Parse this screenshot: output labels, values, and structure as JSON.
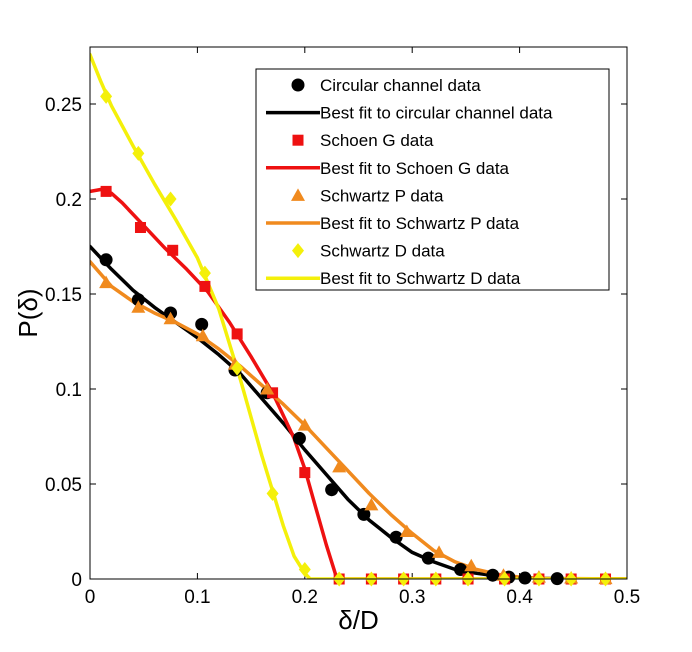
{
  "chart_data": {
    "type": "line",
    "title": "",
    "xlabel": "δ/D",
    "ylabel": "P(δ)",
    "xlim": [
      0,
      0.5
    ],
    "ylim": [
      0,
      0.28
    ],
    "xticks": [
      0,
      0.1,
      0.2,
      0.3,
      0.4,
      0.5
    ],
    "xtick_labels": [
      "0",
      "0.1",
      "0.2",
      "0.3",
      "0.4",
      "0.5"
    ],
    "yticks": [
      0,
      0.05,
      0.1,
      0.15,
      0.2,
      0.25
    ],
    "ytick_labels": [
      "0",
      "0.05",
      "0.1",
      "0.15",
      "0.2",
      "0.25"
    ],
    "legend_position": "top-right",
    "series": [
      {
        "name": "Circular channel data",
        "kind": "markers",
        "marker": "circle",
        "color": "#000000",
        "x": [
          0.015,
          0.045,
          0.075,
          0.104,
          0.135,
          0.165,
          0.195,
          0.225,
          0.255,
          0.285,
          0.315,
          0.345,
          0.375,
          0.39,
          0.405,
          0.435
        ],
        "y": [
          0.168,
          0.147,
          0.14,
          0.134,
          0.11,
          0.098,
          0.074,
          0.047,
          0.034,
          0.022,
          0.011,
          0.005,
          0.002,
          0.001,
          0.0005,
          0.0002
        ]
      },
      {
        "name": "Best fit to circular channel data",
        "kind": "line",
        "color": "#000000",
        "x": [
          0,
          0.02,
          0.04,
          0.06,
          0.08,
          0.1,
          0.12,
          0.14,
          0.16,
          0.18,
          0.2,
          0.22,
          0.24,
          0.26,
          0.28,
          0.3,
          0.32,
          0.34,
          0.36,
          0.38,
          0.4,
          0.42,
          0.44,
          0.5
        ],
        "y": [
          0.175,
          0.163,
          0.152,
          0.143,
          0.135,
          0.127,
          0.118,
          0.108,
          0.095,
          0.082,
          0.068,
          0.055,
          0.042,
          0.031,
          0.022,
          0.014,
          0.009,
          0.005,
          0.003,
          0.0015,
          0.0008,
          0.0003,
          0.0001,
          0
        ]
      },
      {
        "name": "Schoen G data",
        "kind": "markers",
        "marker": "square",
        "color": "#ee1111",
        "x": [
          0.015,
          0.047,
          0.077,
          0.107,
          0.137,
          0.17,
          0.2,
          0.232,
          0.262,
          0.292,
          0.322,
          0.352,
          0.386,
          0.418,
          0.448,
          0.48
        ],
        "y": [
          0.204,
          0.185,
          0.173,
          0.154,
          0.129,
          0.098,
          0.056,
          0,
          0,
          0,
          0,
          0,
          0,
          0,
          0,
          0
        ]
      },
      {
        "name": "Best fit to Schoen G data",
        "kind": "line",
        "color": "#ee1111",
        "x": [
          0,
          0.01,
          0.02,
          0.03,
          0.05,
          0.07,
          0.09,
          0.11,
          0.13,
          0.15,
          0.17,
          0.19,
          0.2,
          0.21,
          0.22,
          0.23,
          0.5
        ],
        "y": [
          0.204,
          0.205,
          0.203,
          0.198,
          0.186,
          0.174,
          0.163,
          0.151,
          0.135,
          0.117,
          0.098,
          0.074,
          0.058,
          0.038,
          0.018,
          0,
          0
        ]
      },
      {
        "name": "Schwartz P data",
        "kind": "markers",
        "marker": "triangle",
        "color": "#f08a1e",
        "x": [
          0.015,
          0.045,
          0.075,
          0.105,
          0.135,
          0.165,
          0.2,
          0.232,
          0.262,
          0.295,
          0.325,
          0.355,
          0.385,
          0.418,
          0.448,
          0.48
        ],
        "y": [
          0.156,
          0.143,
          0.137,
          0.128,
          0.113,
          0.1,
          0.081,
          0.059,
          0.039,
          0.025,
          0.014,
          0.007,
          0.002,
          0.001,
          0.0005,
          0.0002
        ]
      },
      {
        "name": "Best fit to Schwartz P data",
        "kind": "line",
        "color": "#f08a1e",
        "x": [
          0,
          0.02,
          0.04,
          0.06,
          0.08,
          0.1,
          0.12,
          0.14,
          0.16,
          0.18,
          0.2,
          0.22,
          0.24,
          0.26,
          0.28,
          0.3,
          0.32,
          0.34,
          0.36,
          0.38,
          0.4,
          0.42,
          0.5
        ],
        "y": [
          0.167,
          0.154,
          0.146,
          0.14,
          0.135,
          0.129,
          0.121,
          0.112,
          0.102,
          0.092,
          0.081,
          0.069,
          0.057,
          0.045,
          0.034,
          0.024,
          0.015,
          0.009,
          0.005,
          0.0025,
          0.001,
          0.0003,
          0
        ]
      },
      {
        "name": "Schwartz D data",
        "kind": "markers",
        "marker": "diamond",
        "color": "#f4f00a",
        "x": [
          0.015,
          0.045,
          0.075,
          0.107,
          0.137,
          0.17,
          0.2,
          0.232,
          0.262,
          0.292,
          0.322,
          0.352,
          0.386,
          0.418,
          0.448,
          0.48
        ],
        "y": [
          0.254,
          0.224,
          0.2,
          0.161,
          0.111,
          0.045,
          0.005,
          0,
          0,
          0,
          0,
          0,
          0,
          0,
          0,
          0
        ]
      },
      {
        "name": "Best fit to Schwartz D data",
        "kind": "line",
        "color": "#f4f00a",
        "x": [
          0,
          0.01,
          0.02,
          0.04,
          0.06,
          0.08,
          0.1,
          0.12,
          0.14,
          0.16,
          0.18,
          0.19,
          0.2,
          0.205,
          0.5
        ],
        "y": [
          0.276,
          0.262,
          0.249,
          0.228,
          0.208,
          0.189,
          0.169,
          0.142,
          0.105,
          0.065,
          0.028,
          0.012,
          0.003,
          0,
          0
        ]
      }
    ]
  }
}
